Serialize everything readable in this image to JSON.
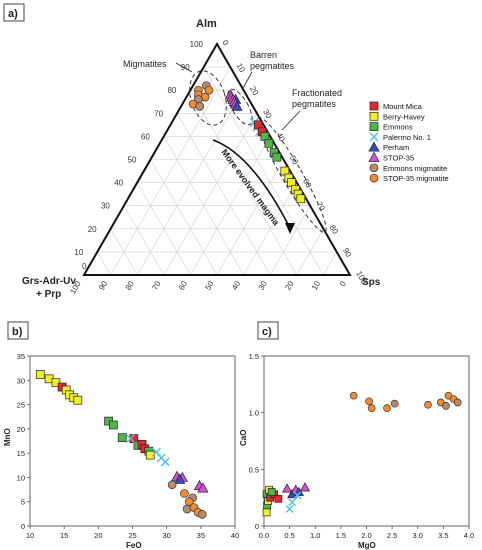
{
  "colors": {
    "mount_mica": "#e8262b",
    "berry_havey": "#f2ee27",
    "emmons": "#4db848",
    "palermo": "#4cc3ea",
    "perham": "#3f48c4",
    "stop35": "#d64fd6",
    "emmons_migmatite": "#b98a6a",
    "stop35_migmatite": "#f08c32"
  },
  "chart_data": [
    {
      "panel": "a)",
      "type": "scatter",
      "ternary": true,
      "apex_top": "Alm",
      "apex_left_lines": [
        "Grs-Adr-Uv",
        "+ Prp"
      ],
      "apex_right": "Sps",
      "ticks": [
        "10",
        "20",
        "30",
        "40",
        "50",
        "60",
        "70",
        "80",
        "90",
        "100"
      ],
      "zero_label": "0",
      "annotations": {
        "migmatites": "Migmatites",
        "barren": [
          "Barren",
          "pegmatites"
        ],
        "fractionated": [
          "Fractionated",
          "pegmatites"
        ],
        "arrow": "More evolved magma"
      },
      "legend": [
        {
          "label": "Mount Mica",
          "marker": "square",
          "color": "mount_mica"
        },
        {
          "label": "Berry-Havey",
          "marker": "square",
          "color": "berry_havey"
        },
        {
          "label": "Emmons",
          "marker": "square",
          "color": "emmons"
        },
        {
          "label": "Palermo No. 1",
          "marker": "x",
          "color": "palermo"
        },
        {
          "label": "Perham",
          "marker": "triangle",
          "color": "perham"
        },
        {
          "label": "STOP-35",
          "marker": "triangle",
          "color": "stop35"
        },
        {
          "label": "Emmons migmatite",
          "marker": "circle",
          "color": "emmons_migmatite"
        },
        {
          "label": "STOP-35 migmatite",
          "marker": "circle",
          "color": "stop35_migmatite"
        }
      ],
      "points": [
        {
          "series": "emmons_migmatite",
          "alm": 82,
          "sps": 5
        },
        {
          "series": "stop35_migmatite",
          "alm": 80,
          "sps": 3
        },
        {
          "series": "stop35_migmatite",
          "alm": 78,
          "sps": 4
        },
        {
          "series": "stop35_migmatite",
          "alm": 77,
          "sps": 7
        },
        {
          "series": "emmons_migmatite",
          "alm": 76,
          "sps": 5
        },
        {
          "series": "stop35_migmatite",
          "alm": 74,
          "sps": 4
        },
        {
          "series": "emmons_migmatite",
          "alm": 73,
          "sps": 7
        },
        {
          "series": "stop35_migmatite",
          "alm": 80,
          "sps": 7
        },
        {
          "series": "stop35",
          "alm": 78,
          "sps": 16
        },
        {
          "series": "stop35",
          "alm": 77,
          "sps": 17
        },
        {
          "series": "stop35",
          "alm": 76,
          "sps": 18
        },
        {
          "series": "perham",
          "alm": 76,
          "sps": 19
        },
        {
          "series": "stop35",
          "alm": 75,
          "sps": 19
        },
        {
          "series": "stop35",
          "alm": 74,
          "sps": 20
        },
        {
          "series": "perham",
          "alm": 73,
          "sps": 21
        },
        {
          "series": "palermo",
          "alm": 66,
          "sps": 31
        },
        {
          "series": "palermo",
          "alm": 64,
          "sps": 33
        },
        {
          "series": "palermo",
          "alm": 62,
          "sps": 35
        },
        {
          "series": "mount_mica",
          "alm": 65,
          "sps": 33
        },
        {
          "series": "mount_mica",
          "alm": 62,
          "sps": 36
        },
        {
          "series": "emmons",
          "alm": 60,
          "sps": 38
        },
        {
          "series": "emmons",
          "alm": 57,
          "sps": 41
        },
        {
          "series": "emmons",
          "alm": 53,
          "sps": 45
        },
        {
          "series": "emmons",
          "alm": 51,
          "sps": 47
        },
        {
          "series": "berry_havey",
          "alm": 45,
          "sps": 53
        },
        {
          "series": "berry_havey",
          "alm": 42,
          "sps": 56
        },
        {
          "series": "berry_havey",
          "alm": 40,
          "sps": 58
        },
        {
          "series": "berry_havey",
          "alm": 37,
          "sps": 61
        },
        {
          "series": "berry_havey",
          "alm": 35,
          "sps": 63
        },
        {
          "series": "berry_havey",
          "alm": 33,
          "sps": 65
        }
      ]
    },
    {
      "panel": "b)",
      "type": "scatter",
      "xlabel": "FeO",
      "ylabel": "MnO",
      "xlim": [
        10,
        40
      ],
      "ylim": [
        0,
        35
      ],
      "xticks": [
        10,
        15,
        20,
        25,
        30,
        35,
        40
      ],
      "yticks": [
        0,
        5,
        10,
        15,
        20,
        25,
        30,
        35
      ],
      "points": [
        {
          "series": "berry_havey",
          "x": 11.5,
          "y": 31.2
        },
        {
          "series": "berry_havey",
          "x": 12.8,
          "y": 30.3
        },
        {
          "series": "berry_havey",
          "x": 13.8,
          "y": 29.5
        },
        {
          "series": "mount_mica",
          "x": 14.7,
          "y": 28.6
        },
        {
          "series": "berry_havey",
          "x": 15.3,
          "y": 28.0
        },
        {
          "series": "berry_havey",
          "x": 15.8,
          "y": 27.0
        },
        {
          "series": "berry_havey",
          "x": 16.4,
          "y": 26.4
        },
        {
          "series": "berry_havey",
          "x": 17.0,
          "y": 25.9
        },
        {
          "series": "emmons",
          "x": 21.5,
          "y": 21.6
        },
        {
          "series": "emmons",
          "x": 22.2,
          "y": 20.8
        },
        {
          "series": "emmons",
          "x": 23.5,
          "y": 18.2
        },
        {
          "series": "mount_mica",
          "x": 25.2,
          "y": 18.0
        },
        {
          "series": "emmons",
          "x": 25.8,
          "y": 16.6
        },
        {
          "series": "mount_mica",
          "x": 26.4,
          "y": 16.8
        },
        {
          "series": "mount_mica",
          "x": 26.8,
          "y": 15.9
        },
        {
          "series": "emmons",
          "x": 27.4,
          "y": 15.4
        },
        {
          "series": "berry_havey",
          "x": 27.6,
          "y": 14.6
        },
        {
          "series": "palermo",
          "x": 24.7,
          "y": 18.0
        },
        {
          "series": "palermo",
          "x": 28.5,
          "y": 15.2
        },
        {
          "series": "palermo",
          "x": 29.2,
          "y": 14.0
        },
        {
          "series": "palermo",
          "x": 29.8,
          "y": 13.2
        },
        {
          "series": "stop35",
          "x": 31.5,
          "y": 10.2
        },
        {
          "series": "stop35",
          "x": 32.3,
          "y": 10.0
        },
        {
          "series": "perham",
          "x": 31.9,
          "y": 9.6
        },
        {
          "series": "stop35",
          "x": 34.8,
          "y": 8.3
        },
        {
          "series": "stop35",
          "x": 35.3,
          "y": 7.8
        },
        {
          "series": "emmons_migmatite",
          "x": 30.8,
          "y": 8.5
        },
        {
          "series": "emmons_migmatite",
          "x": 33.8,
          "y": 5.8
        },
        {
          "series": "stop35_migmatite",
          "x": 32.6,
          "y": 6.7
        },
        {
          "series": "stop35_migmatite",
          "x": 33.3,
          "y": 5.0
        },
        {
          "series": "emmons_migmatite",
          "x": 33.0,
          "y": 3.5
        },
        {
          "series": "stop35_migmatite",
          "x": 34.0,
          "y": 3.8
        },
        {
          "series": "stop35_migmatite",
          "x": 34.6,
          "y": 2.8
        },
        {
          "series": "emmons_migmatite",
          "x": 35.2,
          "y": 2.4
        }
      ]
    },
    {
      "panel": "c)",
      "type": "scatter",
      "xlabel": "MgO",
      "ylabel": "CaO",
      "xlim": [
        0,
        4
      ],
      "ylim": [
        0,
        1.5
      ],
      "xticks": [
        "0.0",
        "0.5",
        "1.0",
        "1.5",
        "2.0",
        "2.5",
        "3.0",
        "3.5",
        "4.0"
      ],
      "yticks": [
        "0",
        "0.5",
        "1.0",
        "1.5"
      ],
      "points": [
        {
          "series": "emmons",
          "x": 0.05,
          "y": 0.28
        },
        {
          "series": "emmons",
          "x": 0.06,
          "y": 0.18
        },
        {
          "series": "berry_havey",
          "x": 0.05,
          "y": 0.12
        },
        {
          "series": "berry_havey",
          "x": 0.08,
          "y": 0.22
        },
        {
          "series": "berry_havey",
          "x": 0.1,
          "y": 0.32
        },
        {
          "series": "mount_mica",
          "x": 0.12,
          "y": 0.25
        },
        {
          "series": "mount_mica",
          "x": 0.2,
          "y": 0.28
        },
        {
          "series": "mount_mica",
          "x": 0.28,
          "y": 0.24
        },
        {
          "series": "emmons",
          "x": 0.15,
          "y": 0.3
        },
        {
          "series": "stop35",
          "x": 0.45,
          "y": 0.33
        },
        {
          "series": "perham",
          "x": 0.55,
          "y": 0.28
        },
        {
          "series": "stop35",
          "x": 0.62,
          "y": 0.32
        },
        {
          "series": "perham",
          "x": 0.68,
          "y": 0.3
        },
        {
          "series": "stop35",
          "x": 0.8,
          "y": 0.34
        },
        {
          "series": "palermo",
          "x": 0.5,
          "y": 0.15
        },
        {
          "series": "palermo",
          "x": 0.55,
          "y": 0.21
        },
        {
          "series": "palermo",
          "x": 0.65,
          "y": 0.27
        },
        {
          "series": "stop35_migmatite",
          "x": 1.75,
          "y": 1.15
        },
        {
          "series": "stop35_migmatite",
          "x": 2.05,
          "y": 1.1
        },
        {
          "series": "stop35_migmatite",
          "x": 2.1,
          "y": 1.04
        },
        {
          "series": "stop35_migmatite",
          "x": 2.4,
          "y": 1.04
        },
        {
          "series": "emmons_migmatite",
          "x": 2.55,
          "y": 1.08
        },
        {
          "series": "stop35_migmatite",
          "x": 3.2,
          "y": 1.07
        },
        {
          "series": "stop35_migmatite",
          "x": 3.45,
          "y": 1.09
        },
        {
          "series": "emmons_migmatite",
          "x": 3.55,
          "y": 1.06
        },
        {
          "series": "stop35_migmatite",
          "x": 3.6,
          "y": 1.15
        },
        {
          "series": "stop35_migmatite",
          "x": 3.7,
          "y": 1.12
        },
        {
          "series": "emmons_migmatite",
          "x": 3.78,
          "y": 1.09
        }
      ]
    }
  ]
}
